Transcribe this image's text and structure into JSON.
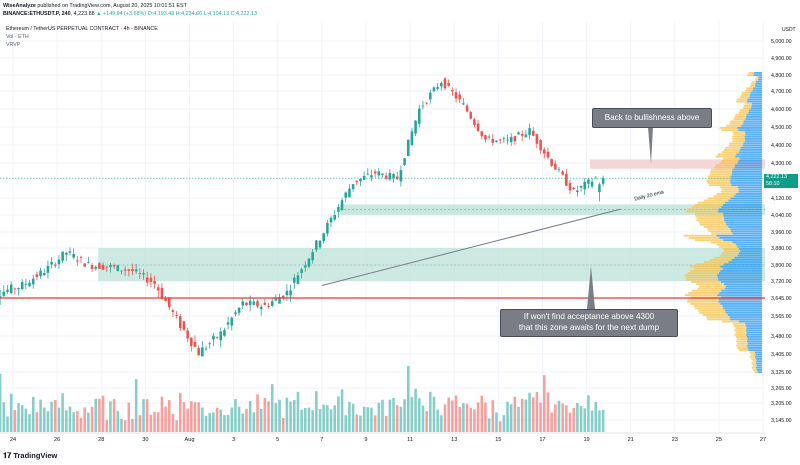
{
  "header": {
    "line1_user": "WiseAnalyze",
    "line1_rest": " published on TradingView.com, August 20, 2025 10:01:51 EST",
    "line2_symbol": "BINANCE:ETHUSDT.P, 240",
    "line2_open": "4,223.88",
    "line2_change": "▲ +149.94 (+3.68%)",
    "line2_ohlc": "O:4,193.48 H:4,234.66 L:4,104.13 C:4,222.13"
  },
  "legend": {
    "title": "Ethereum / TetherUS PERPETUAL CONTRACT · 4h · BINANCE",
    "vol": "Vol · ETH",
    "vrvp": "VRVP"
  },
  "price_axis": {
    "unit": "USDT",
    "labels": [
      "5,000.00",
      "4,900.00",
      "4,800.00",
      "4,700.00",
      "4,600.00",
      "4,500.00",
      "4,400.00",
      "4,300.00",
      "4,120.00",
      "4,040.00",
      "3,960.00",
      "3,880.00",
      "3,800.00",
      "3,720.00",
      "3,645.00",
      "3,565.00",
      "3,480.00",
      "3,405.00",
      "3,325.00",
      "3,265.00",
      "3,205.00",
      "3,145.00"
    ],
    "current_price": "4,222.13",
    "current_timer": "58:10"
  },
  "time_axis": {
    "labels": [
      "24",
      "26",
      "28",
      "30",
      "Aug",
      "3",
      "5",
      "7",
      "9",
      "11",
      "13",
      "15",
      "17",
      "19",
      "21",
      "23",
      "25",
      "27"
    ]
  },
  "annotations": {
    "callout_top": "Back to bullishness above",
    "callout_bottom_line1": "If won't find acceptance above 4300",
    "callout_bottom_line2": "that this zone awaits for the next dump",
    "ema_label": "Daily 20 ema"
  },
  "branding": {
    "logo": "TradingView",
    "logo_mark": "𝟏𝟕"
  },
  "colors": {
    "up": "#26a69a",
    "down": "#ef5350",
    "zone": "#b2dfd3",
    "resistance": "#f3c9cc",
    "support_line": "#e53935",
    "trendline": "#787b86",
    "vp_up": "#2196f3",
    "vp_down": "#f5c14b",
    "callout": "#7a7d86"
  },
  "chart_data": {
    "type": "candlestick",
    "title": "Ethereum / TetherUS PERPETUAL CONTRACT · 4h · BINANCE",
    "ylabel": "USDT",
    "x_ticks": [
      "24",
      "26",
      "28",
      "30",
      "Aug",
      "3",
      "5",
      "7",
      "9",
      "11",
      "13",
      "15",
      "17",
      "19",
      "21",
      "23",
      "25",
      "27"
    ],
    "x_range": [
      "Jul 23",
      "Aug 27"
    ],
    "y_range": [
      3100,
      5000
    ],
    "resistance_zone": [
      4270,
      4320
    ],
    "upper_support_zone": [
      4040,
      4090
    ],
    "lower_support_zone": [
      3720,
      3880
    ],
    "support_line": 3645,
    "trendline": {
      "from": [
        "Aug 7",
        3700
      ],
      "to": [
        "Aug 20",
        4110
      ],
      "label": "Daily 20 ema"
    },
    "last_close": 4222.13,
    "daily_path_close": [
      [
        "Jul 23",
        3590
      ],
      [
        "Jul 24",
        3670
      ],
      [
        "Jul 25",
        3700
      ],
      [
        "Jul 26",
        3770
      ],
      [
        "Jul 27",
        3860
      ],
      [
        "Jul 28",
        3800
      ],
      [
        "Jul 29",
        3790
      ],
      [
        "Jul 30",
        3770
      ],
      [
        "Jul 31",
        3710
      ],
      [
        "Aug 1",
        3550
      ],
      [
        "Aug 2",
        3410
      ],
      [
        "Aug 3",
        3490
      ],
      [
        "Aug 4",
        3620
      ],
      [
        "Aug 5",
        3610
      ],
      [
        "Aug 6",
        3670
      ],
      [
        "Aug 7",
        3840
      ],
      [
        "Aug 8",
        4020
      ],
      [
        "Aug 9",
        4200
      ],
      [
        "Aug 10",
        4250
      ],
      [
        "Aug 11",
        4220
      ],
      [
        "Aug 12",
        4600
      ],
      [
        "Aug 13",
        4760
      ],
      [
        "Aug 14",
        4620
      ],
      [
        "Aug 15",
        4430
      ],
      [
        "Aug 16",
        4420
      ],
      [
        "Aug 17",
        4480
      ],
      [
        "Aug 18",
        4300
      ],
      [
        "Aug 19",
        4150
      ],
      [
        "Aug 20",
        4222
      ]
    ]
  }
}
